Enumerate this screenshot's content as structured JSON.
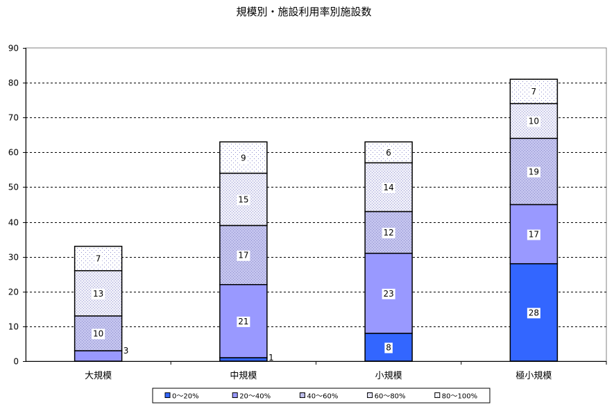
{
  "chart_data": {
    "type": "bar",
    "stacked": true,
    "title": "規模別・施設利用率別施設数",
    "xlabel": "",
    "ylabel": "",
    "categories": [
      "大規模",
      "中規模",
      "小規模",
      "極小規模"
    ],
    "ylim": [
      0,
      90
    ],
    "yticks": [
      0,
      10,
      20,
      30,
      40,
      50,
      60,
      70,
      80,
      90
    ],
    "grid": true,
    "legend_position": "bottom",
    "series": [
      {
        "name": "0～20%",
        "values": [
          0,
          1,
          8,
          28
        ],
        "color": "#3366ff"
      },
      {
        "name": "20～40%",
        "values": [
          3,
          21,
          23,
          17
        ],
        "color": "#9999ff"
      },
      {
        "name": "40～60%",
        "values": [
          10,
          17,
          12,
          19
        ],
        "color": "#ccccee"
      },
      {
        "name": "60～80%",
        "values": [
          13,
          15,
          14,
          10
        ],
        "color": "#eeeef8"
      },
      {
        "name": "80～100%",
        "values": [
          7,
          9,
          6,
          7
        ],
        "color": "#f6f6fc"
      }
    ]
  }
}
